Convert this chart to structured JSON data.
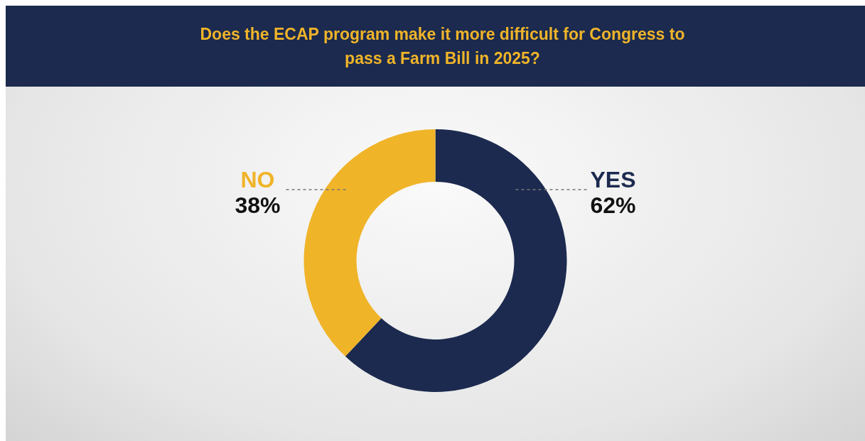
{
  "chart_data": {
    "type": "donut",
    "title": "Does the ECAP program make it more difficult for Congress to pass a Farm Bill in 2025?",
    "categories": [
      "YES",
      "NO"
    ],
    "values": [
      62,
      38
    ],
    "colors": [
      "#1c2a4f",
      "#f0b429"
    ],
    "value_labels": [
      "62%",
      "38%"
    ],
    "legend": false
  }
}
